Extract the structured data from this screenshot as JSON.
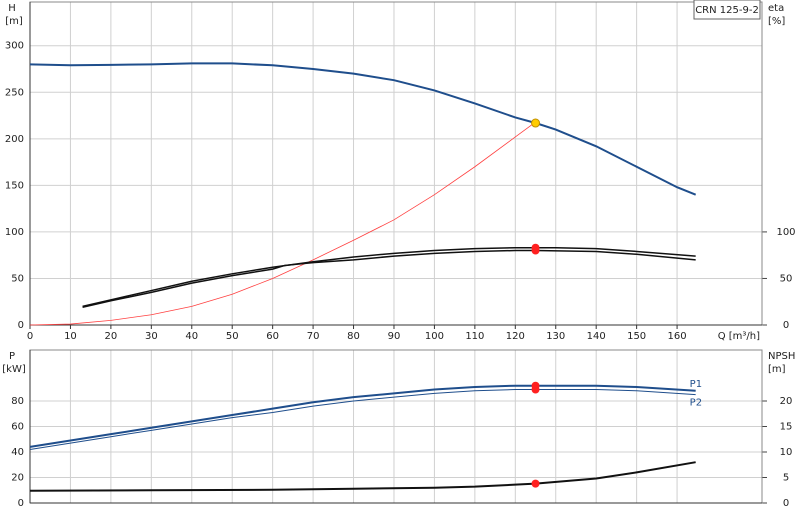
{
  "chart_data": [
    {
      "type": "line",
      "legend_box": "CRN 125-9-2",
      "ylabel": "H",
      "yunit": "[m]",
      "y2label": "eta",
      "y2unit": "[%]",
      "xlabel": "Q [m³/h]",
      "xlim": [
        0,
        181
      ],
      "xticks": [
        0,
        10,
        20,
        30,
        40,
        50,
        60,
        70,
        80,
        90,
        100,
        110,
        120,
        130,
        140,
        150,
        160
      ],
      "ylim": [
        0,
        347
      ],
      "yticks": [
        0,
        50,
        100,
        150,
        200,
        250,
        300
      ],
      "y2lim": [
        0,
        347
      ],
      "y2ticks": [
        0,
        50,
        100
      ],
      "grid": true,
      "series": [
        {
          "color": "#1f4e8c",
          "x": [
            0,
            10,
            20,
            30,
            40,
            50,
            60,
            70,
            80,
            90,
            100,
            110,
            120,
            125,
            130,
            140,
            150,
            160,
            164.6
          ],
          "values": [
            280,
            279,
            279.5,
            280,
            281,
            281,
            279,
            275,
            270,
            263,
            252,
            238,
            223,
            217,
            210,
            192,
            170,
            148,
            140
          ]
        },
        {
          "color": "#ff4040",
          "x": [
            0,
            10,
            20,
            30,
            40,
            50,
            60,
            70,
            80,
            90,
            100,
            110,
            120,
            125
          ],
          "values": [
            0,
            1,
            5,
            11,
            20,
            33,
            50,
            70,
            91,
            113,
            140,
            170,
            202,
            218
          ]
        },
        {
          "color": "#111111",
          "axis": "y2",
          "x": [
            13,
            20,
            30,
            40,
            50,
            60,
            70,
            80,
            90,
            100,
            110,
            120,
            125,
            130,
            140,
            150,
            164.6
          ],
          "values": [
            20,
            27,
            37,
            47,
            55,
            62,
            68,
            73,
            77,
            80,
            82,
            83,
            83,
            83,
            82,
            79,
            74
          ]
        },
        {
          "color": "#111111",
          "axis": "y2",
          "x": [
            13,
            20,
            30,
            40,
            50,
            60,
            63,
            70,
            80,
            90,
            100,
            110,
            120,
            125,
            140,
            150,
            164.6
          ],
          "values": [
            19,
            26,
            35,
            45,
            53,
            60,
            64,
            67,
            70,
            74,
            77,
            79,
            80,
            80,
            79,
            76,
            70
          ]
        }
      ],
      "markers": [
        {
          "x": 125,
          "y": 217,
          "color": "#ffcc00"
        },
        {
          "x": 125,
          "y": 83,
          "color": "#ff2020",
          "axis": "y2"
        },
        {
          "x": 125,
          "y": 80,
          "color": "#ff2020",
          "axis": "y2"
        }
      ]
    },
    {
      "type": "line",
      "ylabel": "P",
      "yunit": "[kW]",
      "y2label": "NPSH",
      "y2unit": "[m]",
      "xlim": [
        0,
        181
      ],
      "ylim": [
        0,
        120
      ],
      "yticks": [
        0,
        20,
        40,
        60,
        80
      ],
      "y2lim": [
        0,
        30
      ],
      "y2ticks": [
        0,
        5,
        10,
        15,
        20
      ],
      "grid": true,
      "series": [
        {
          "name": "P1",
          "color": "#1f4e8c",
          "x": [
            0,
            10,
            20,
            30,
            40,
            50,
            60,
            70,
            80,
            90,
            100,
            110,
            120,
            125,
            140,
            150,
            164.6
          ],
          "values": [
            44,
            49,
            54,
            59,
            64,
            69,
            74,
            79,
            83,
            86,
            89,
            91,
            92,
            92,
            92,
            91,
            88
          ]
        },
        {
          "name": "P2",
          "color": "#1f4e8c",
          "x": [
            0,
            10,
            20,
            30,
            40,
            50,
            60,
            70,
            80,
            90,
            100,
            110,
            120,
            125,
            140,
            150,
            164.6
          ],
          "values": [
            42,
            47,
            52,
            57,
            62,
            67,
            71,
            76,
            80,
            83,
            86,
            88,
            89,
            89,
            89,
            88,
            85
          ]
        },
        {
          "color": "#111111",
          "axis": "y2",
          "x": [
            0,
            30,
            60,
            80,
            100,
            110,
            120,
            125,
            140,
            150,
            164.6
          ],
          "values": [
            2.4,
            2.5,
            2.6,
            2.8,
            3.0,
            3.2,
            3.6,
            3.8,
            4.8,
            6.0,
            8.0
          ]
        }
      ],
      "markers": [
        {
          "x": 125,
          "y": 92,
          "color": "#ff2020"
        },
        {
          "x": 125,
          "y": 89,
          "color": "#ff2020"
        },
        {
          "x": 125,
          "y": 3.8,
          "color": "#ff2020",
          "axis": "y2"
        }
      ]
    }
  ]
}
